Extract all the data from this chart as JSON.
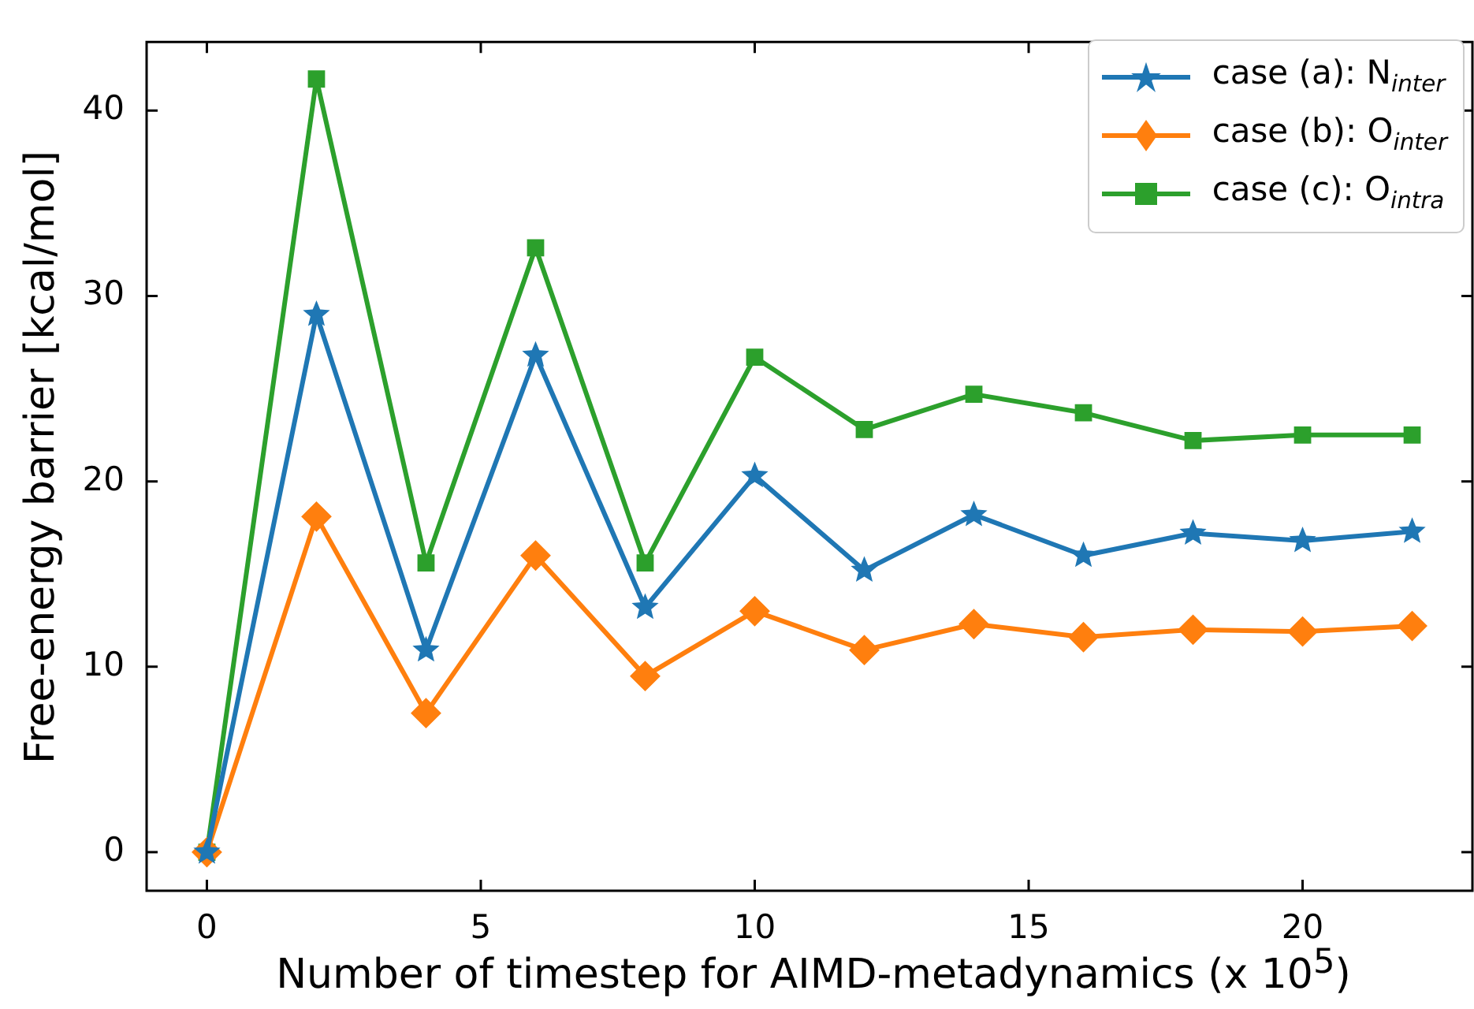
{
  "chart_data": {
    "type": "line",
    "xlabel": "Number of timestep for AIMD-metadynamics (x 10$^{5}$)",
    "ylabel": "Free-energy barrier [kcal/mol]",
    "x": [
      0,
      2,
      4,
      6,
      8,
      10,
      12,
      14,
      16,
      18,
      20,
      22
    ],
    "series": [
      {
        "name": "case (a): N$_{inter}$",
        "color": "#1f77b4",
        "marker": "star",
        "values": [
          0,
          29.0,
          10.9,
          26.8,
          13.2,
          20.3,
          15.2,
          18.2,
          16.0,
          17.2,
          16.8,
          17.3
        ]
      },
      {
        "name": "case (b): O$_{inter}$",
        "color": "#ff7f0e",
        "marker": "diamond",
        "values": [
          0,
          18.1,
          7.5,
          16.0,
          9.5,
          13.0,
          10.9,
          12.3,
          11.6,
          12.0,
          11.9,
          12.2
        ]
      },
      {
        "name": "case (c): O$_{intra}$",
        "color": "#2ca02c",
        "marker": "square",
        "values": [
          0,
          41.7,
          15.6,
          32.6,
          15.6,
          26.7,
          22.8,
          24.7,
          23.7,
          22.2,
          22.5,
          22.5
        ]
      }
    ],
    "xlim": [
      -1.1,
      23.1
    ],
    "xticks": [
      0,
      5,
      10,
      15,
      20
    ],
    "ylim": [
      -2.08,
      43.7
    ],
    "yticks": [
      0,
      10,
      20,
      30,
      40
    ],
    "grid": false,
    "legend": "top right",
    "line_style": "solid"
  }
}
